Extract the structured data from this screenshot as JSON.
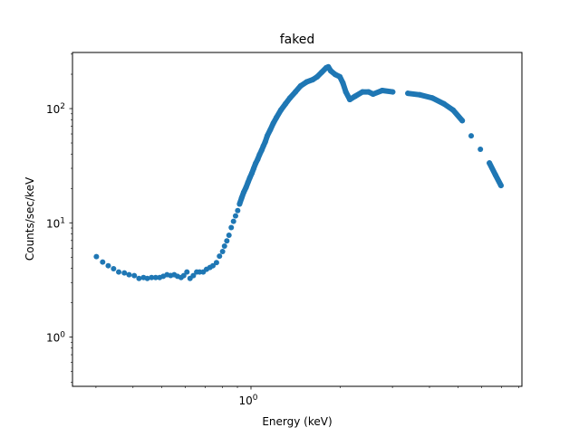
{
  "chart_data": {
    "type": "scatter",
    "title": "faked",
    "xlabel": "Energy (keV)",
    "ylabel": "Counts/sec/keV",
    "xscale": "log",
    "yscale": "log",
    "xlim": [
      0.25,
      8.2
    ],
    "ylim": [
      0.37,
      310
    ],
    "grid": false,
    "color": "#1f77b4",
    "x_tick_labels": [
      {
        "value": 1,
        "base": "10",
        "exp": "0"
      }
    ],
    "y_tick_labels": [
      {
        "value": 1,
        "base": "10",
        "exp": "0"
      },
      {
        "value": 10,
        "base": "10",
        "exp": "1"
      },
      {
        "value": 100,
        "base": "10",
        "exp": "2"
      }
    ],
    "x": [
      0.301,
      0.316,
      0.33,
      0.344,
      0.358,
      0.374,
      0.388,
      0.404,
      0.419,
      0.434,
      0.447,
      0.462,
      0.477,
      0.492,
      0.506,
      0.521,
      0.536,
      0.551,
      0.565,
      0.581,
      0.593,
      0.608,
      0.623,
      0.639,
      0.656,
      0.671,
      0.69,
      0.708,
      0.727,
      0.744,
      0.765,
      0.783,
      0.802,
      0.814,
      0.829,
      0.843,
      0.858,
      0.873,
      0.887,
      0.902,
      0.915,
      0.93,
      0.945,
      0.963,
      0.977,
      0.991,
      1.007,
      1.021,
      1.036,
      1.053,
      1.068,
      1.086,
      1.101,
      1.117,
      1.135,
      1.162,
      1.19,
      1.218,
      1.261,
      1.307,
      1.354,
      1.412,
      1.47,
      1.54,
      1.614,
      1.672,
      1.732,
      1.794,
      1.823,
      1.858,
      1.923,
      1.994,
      2.041,
      2.089,
      2.154,
      2.243,
      2.377,
      2.492,
      2.582,
      2.77,
      3.006,
      3.382,
      3.714,
      4.085,
      4.478,
      4.806,
      5.16,
      5.53,
      5.94,
      6.37,
      6.68,
      6.97
    ],
    "y": [
      5.06,
      4.53,
      4.21,
      3.96,
      3.71,
      3.64,
      3.51,
      3.45,
      3.26,
      3.32,
      3.26,
      3.32,
      3.32,
      3.32,
      3.4,
      3.51,
      3.46,
      3.51,
      3.4,
      3.32,
      3.45,
      3.71,
      3.26,
      3.45,
      3.71,
      3.71,
      3.71,
      3.92,
      4.06,
      4.21,
      4.48,
      5.11,
      5.6,
      6.25,
      6.94,
      7.78,
      9.08,
      10.3,
      11.5,
      12.8,
      14.6,
      16.5,
      18.5,
      20.5,
      22.6,
      24.8,
      27.2,
      29.9,
      33.0,
      35.9,
      39.4,
      43.1,
      47.0,
      51.1,
      57.8,
      65.3,
      74.7,
      83.3,
      97.0,
      110,
      124,
      140,
      158,
      171,
      179,
      190,
      208,
      228,
      232,
      214,
      199,
      190,
      168,
      140,
      120,
      128,
      140,
      140,
      134,
      144,
      140,
      136,
      132,
      124,
      110,
      97.0,
      78.4,
      57.8,
      44.0,
      33.4,
      26.2,
      21.2
    ]
  }
}
